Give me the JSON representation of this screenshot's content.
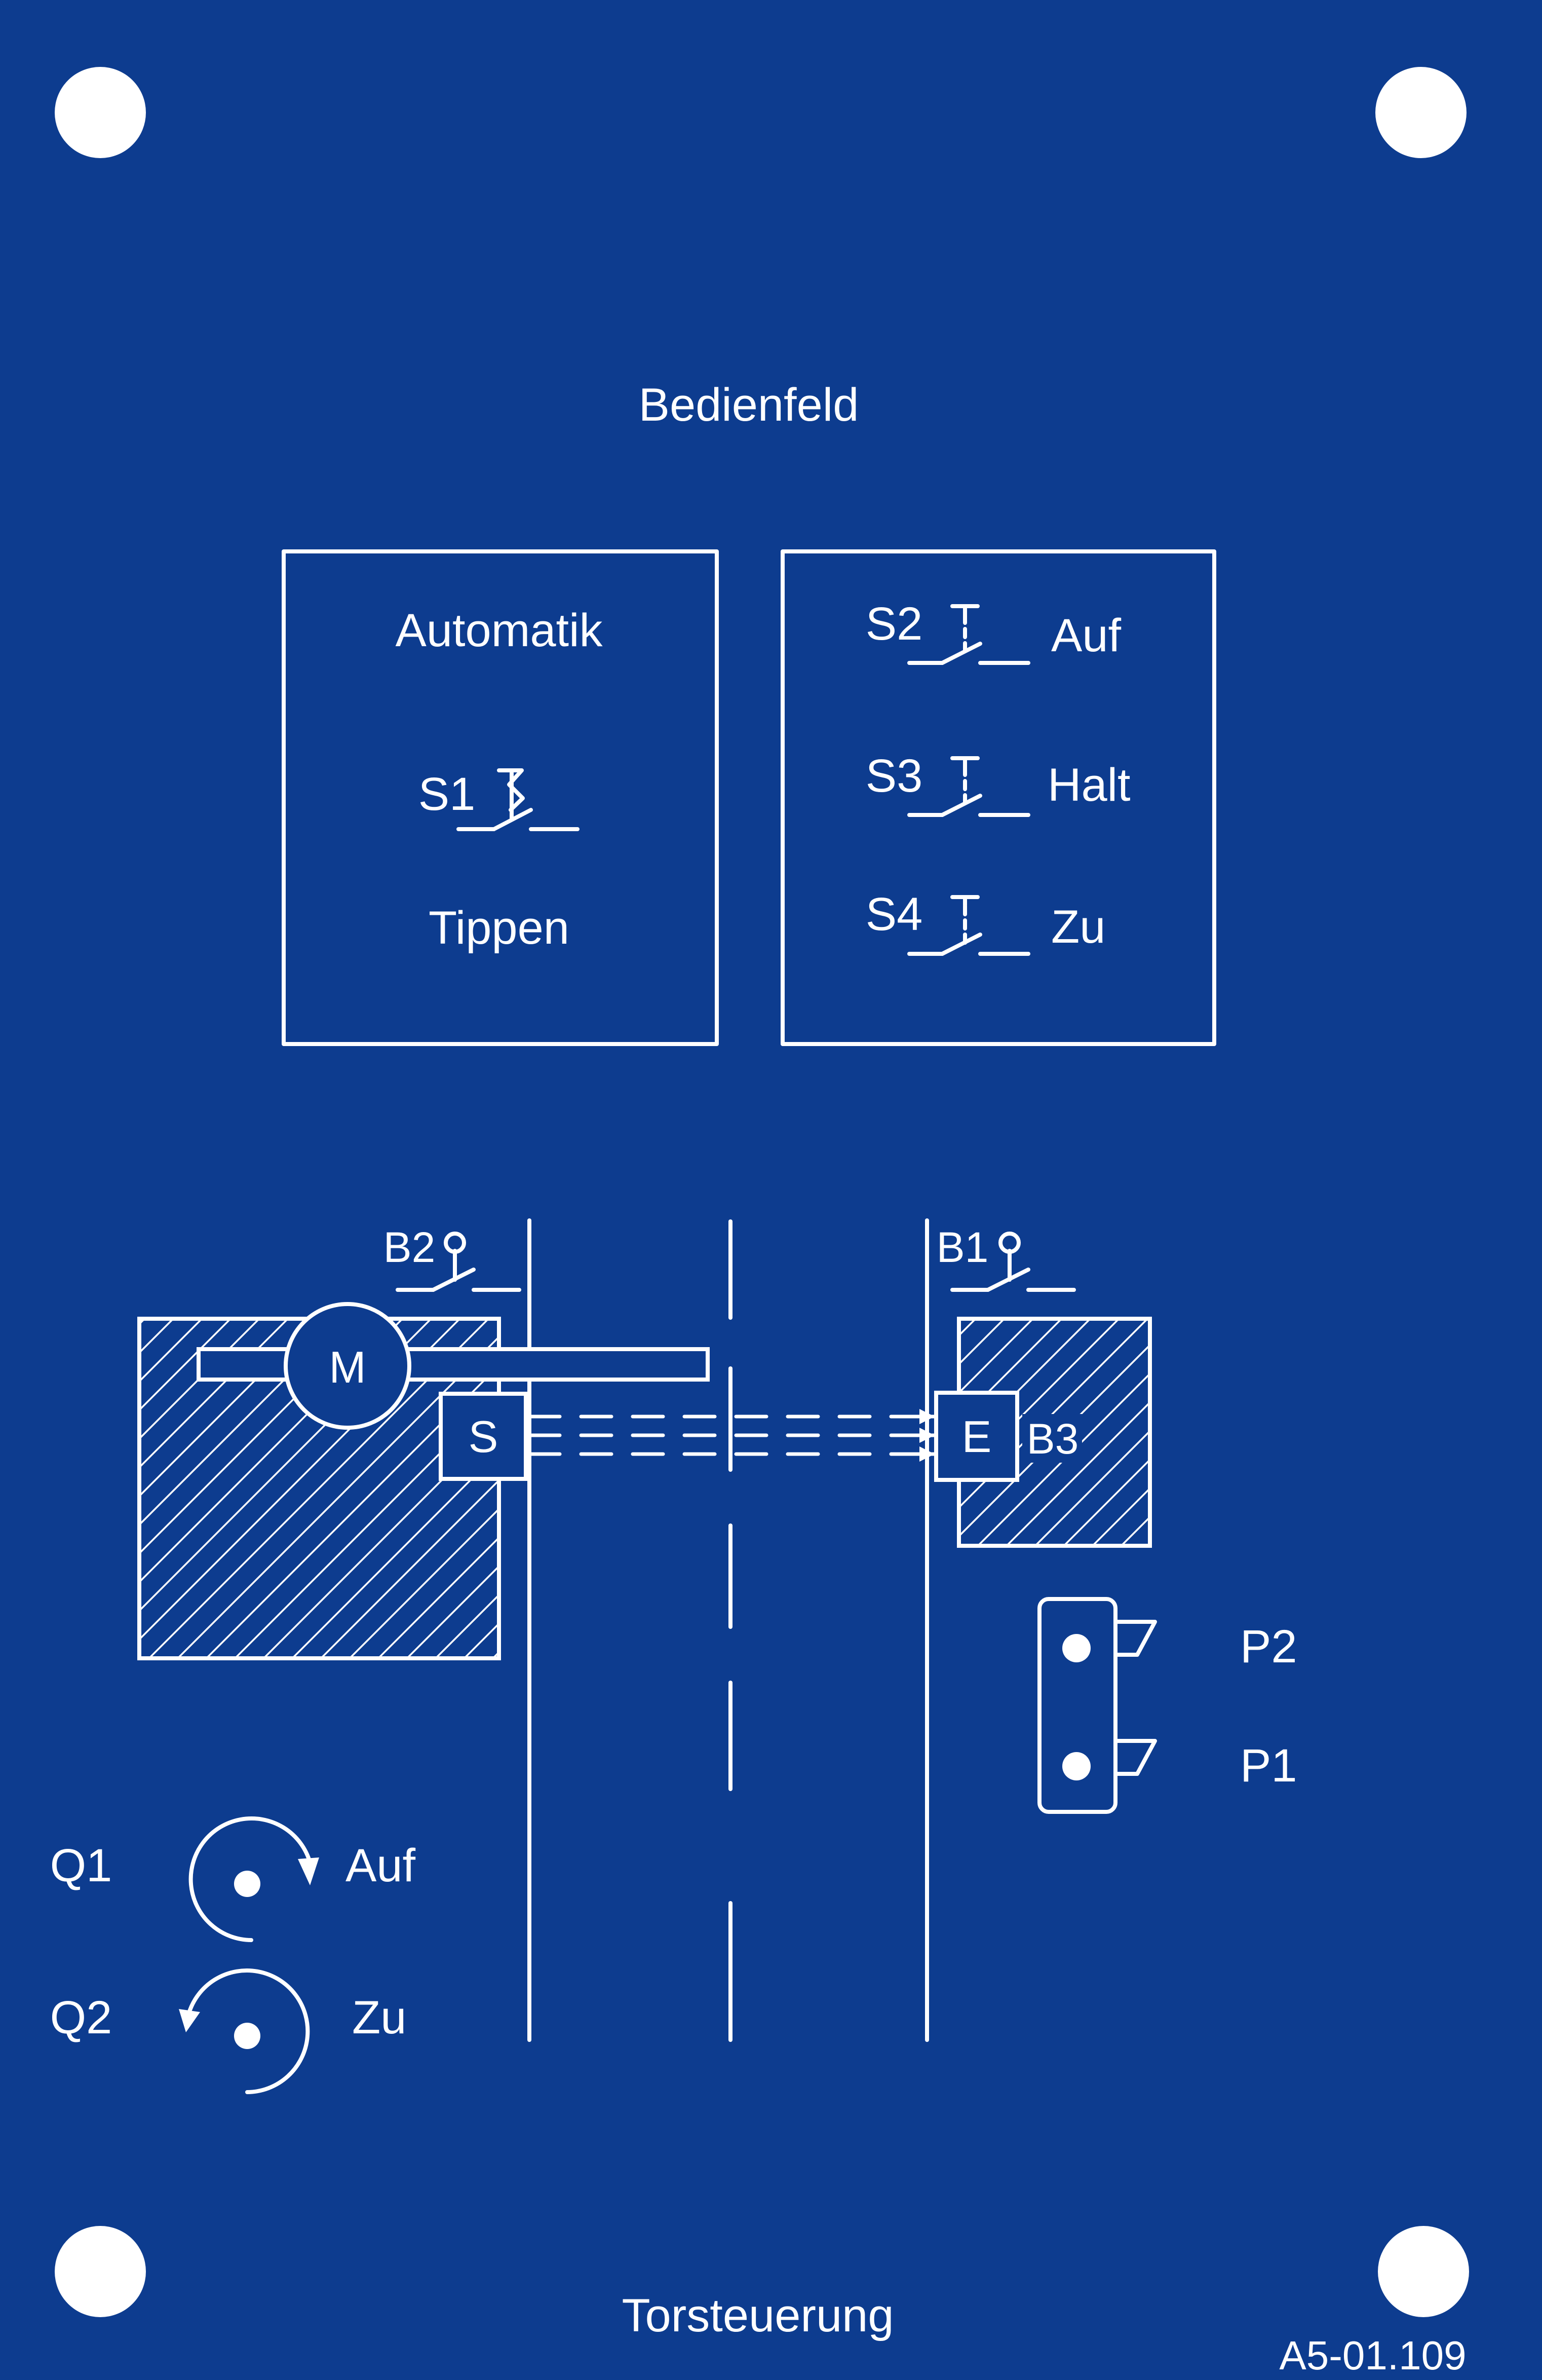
{
  "panel": {
    "title": "Bedienfeld",
    "footer": "Torsteuerung",
    "part_number": "A5-01.109",
    "colors": {
      "background": "#0d3c8f",
      "print": "#ffffff"
    }
  },
  "mode_box": {
    "top_label": "Automatik",
    "switch_label": "S1",
    "bottom_label": "Tippen"
  },
  "buttons_box": {
    "items": [
      {
        "id": "S2",
        "label": "Auf"
      },
      {
        "id": "S3",
        "label": "Halt"
      },
      {
        "id": "S4",
        "label": "Zu"
      }
    ]
  },
  "gate": {
    "limit_switch_left": "B2",
    "limit_switch_right": "B1",
    "motor": "M",
    "sender": "S",
    "receiver": "E",
    "light_barrier": "B3"
  },
  "lamps": [
    {
      "id": "P2"
    },
    {
      "id": "P1"
    }
  ],
  "contactors": [
    {
      "id": "Q1",
      "label": "Auf"
    },
    {
      "id": "Q2",
      "label": "Zu"
    }
  ],
  "icons": [
    "mounting-hole-icon",
    "push-button-icon",
    "detent-switch-icon",
    "limit-switch-icon",
    "motor-icon",
    "rotation-cw-icon",
    "rotation-ccw-icon",
    "signal-lamp-icon"
  ]
}
